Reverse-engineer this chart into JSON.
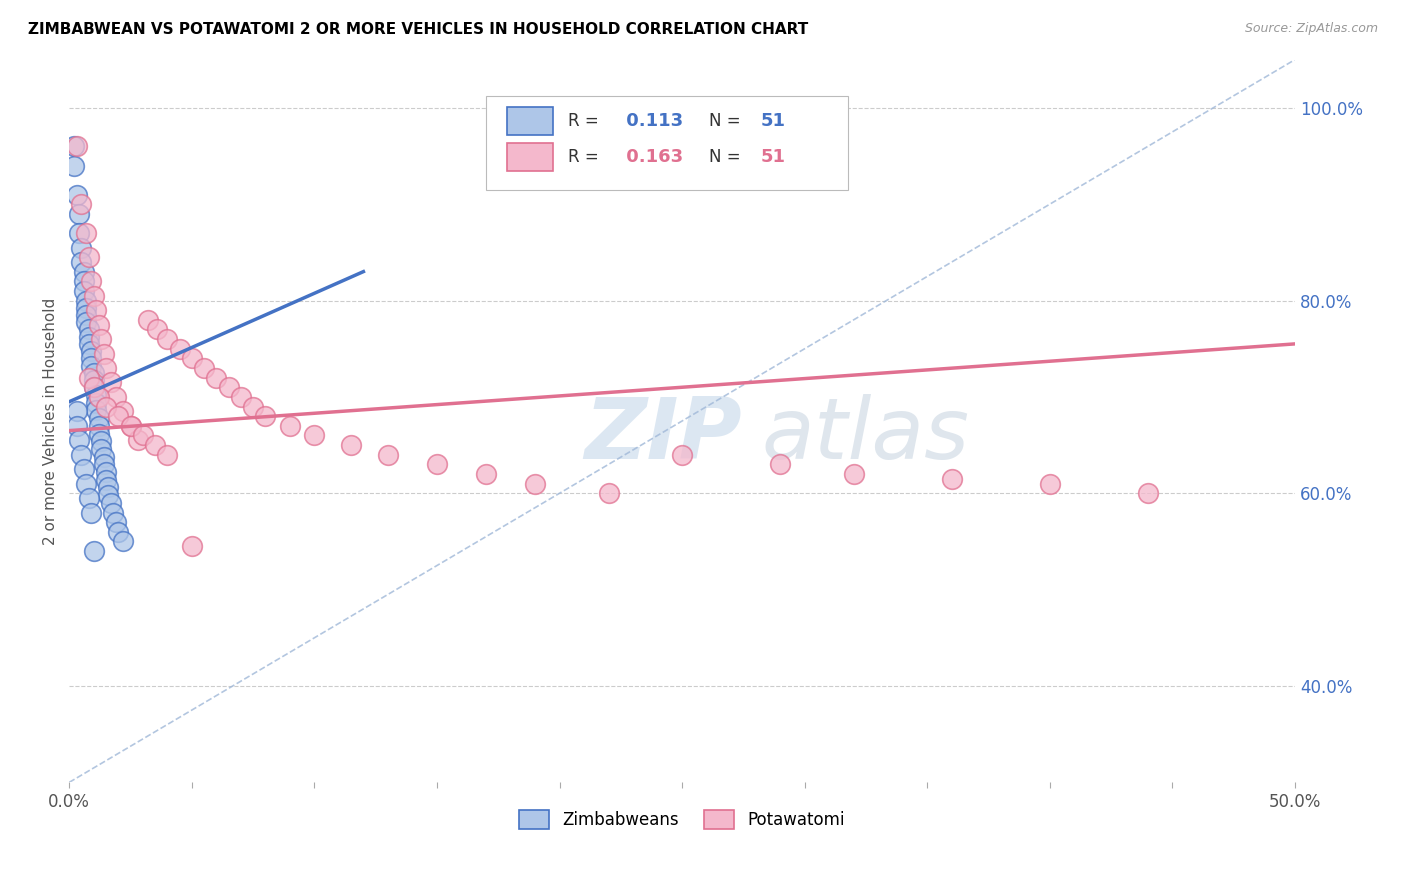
{
  "title": "ZIMBABWEAN VS POTAWATOMI 2 OR MORE VEHICLES IN HOUSEHOLD CORRELATION CHART",
  "source": "Source: ZipAtlas.com",
  "ylabel": "2 or more Vehicles in Household",
  "xlim": [
    0.0,
    0.5
  ],
  "ylim": [
    0.3,
    1.05
  ],
  "yticks_right": [
    0.4,
    0.6,
    0.8,
    1.0
  ],
  "yticklabels_right": [
    "40.0%",
    "60.0%",
    "80.0%",
    "100.0%"
  ],
  "legend_r_blue": "0.113",
  "legend_n_blue": "51",
  "legend_r_pink": "0.163",
  "legend_n_pink": "51",
  "blue_color": "#aec6e8",
  "pink_color": "#f4b8cc",
  "blue_line_color": "#4472c4",
  "pink_line_color": "#e07090",
  "dashed_line_color": "#a0b8d8",
  "watermark_zip": "ZIP",
  "watermark_atlas": "atlas",
  "zimbabwean_x": [
    0.002,
    0.002,
    0.003,
    0.004,
    0.004,
    0.005,
    0.005,
    0.006,
    0.006,
    0.006,
    0.007,
    0.007,
    0.007,
    0.007,
    0.008,
    0.008,
    0.008,
    0.009,
    0.009,
    0.009,
    0.01,
    0.01,
    0.01,
    0.011,
    0.011,
    0.011,
    0.012,
    0.012,
    0.012,
    0.013,
    0.013,
    0.014,
    0.014,
    0.015,
    0.015,
    0.016,
    0.016,
    0.017,
    0.018,
    0.019,
    0.02,
    0.022,
    0.003,
    0.003,
    0.004,
    0.005,
    0.006,
    0.007,
    0.008,
    0.009,
    0.01
  ],
  "zimbabwean_y": [
    0.96,
    0.94,
    0.91,
    0.89,
    0.87,
    0.855,
    0.84,
    0.83,
    0.82,
    0.81,
    0.8,
    0.792,
    0.785,
    0.778,
    0.77,
    0.762,
    0.755,
    0.748,
    0.74,
    0.732,
    0.725,
    0.718,
    0.71,
    0.702,
    0.694,
    0.686,
    0.678,
    0.67,
    0.662,
    0.654,
    0.646,
    0.638,
    0.63,
    0.622,
    0.614,
    0.606,
    0.598,
    0.59,
    0.58,
    0.57,
    0.56,
    0.55,
    0.685,
    0.67,
    0.655,
    0.64,
    0.625,
    0.61,
    0.595,
    0.58,
    0.54
  ],
  "potawatomi_x": [
    0.003,
    0.005,
    0.007,
    0.008,
    0.009,
    0.01,
    0.011,
    0.012,
    0.013,
    0.014,
    0.015,
    0.017,
    0.019,
    0.022,
    0.025,
    0.028,
    0.032,
    0.036,
    0.04,
    0.045,
    0.05,
    0.055,
    0.06,
    0.065,
    0.07,
    0.075,
    0.08,
    0.09,
    0.1,
    0.115,
    0.13,
    0.15,
    0.17,
    0.19,
    0.22,
    0.25,
    0.29,
    0.32,
    0.36,
    0.4,
    0.44,
    0.008,
    0.01,
    0.012,
    0.015,
    0.02,
    0.025,
    0.03,
    0.035,
    0.04,
    0.05
  ],
  "potawatomi_y": [
    0.96,
    0.9,
    0.87,
    0.845,
    0.82,
    0.805,
    0.79,
    0.775,
    0.76,
    0.745,
    0.73,
    0.715,
    0.7,
    0.685,
    0.67,
    0.655,
    0.78,
    0.77,
    0.76,
    0.75,
    0.74,
    0.73,
    0.72,
    0.71,
    0.7,
    0.69,
    0.68,
    0.67,
    0.66,
    0.65,
    0.64,
    0.63,
    0.62,
    0.61,
    0.6,
    0.64,
    0.63,
    0.62,
    0.615,
    0.61,
    0.6,
    0.72,
    0.71,
    0.7,
    0.69,
    0.68,
    0.67,
    0.66,
    0.65,
    0.64,
    0.545
  ],
  "blue_trend_x": [
    0.0,
    0.12
  ],
  "blue_trend_y": [
    0.695,
    0.83
  ],
  "pink_trend_x": [
    0.0,
    0.5
  ],
  "pink_trend_y": [
    0.665,
    0.755
  ]
}
